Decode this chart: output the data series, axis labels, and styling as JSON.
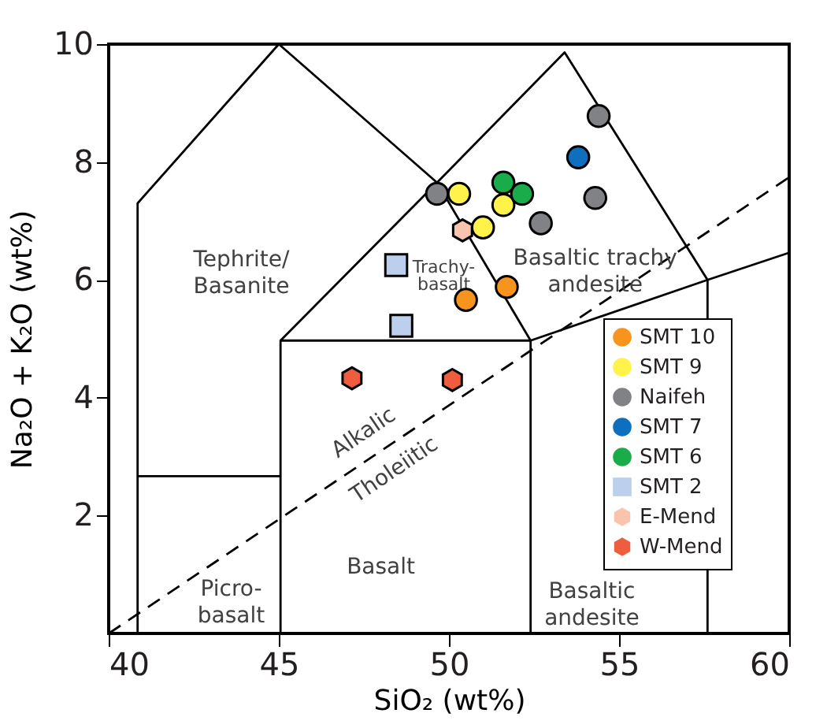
{
  "chart_data": {
    "type": "scatter",
    "xlabel": "SiO₂ (wt%)",
    "ylabel": "Na₂O + K₂O (wt%)",
    "xlim": [
      40,
      60
    ],
    "ylim": [
      0,
      10
    ],
    "xticks": [
      40,
      45,
      50,
      55,
      60
    ],
    "yticks": [
      2,
      4,
      6,
      8,
      10
    ],
    "grid": false,
    "legend": "right",
    "series": [
      {
        "name": "SMT 10",
        "color": "#f7941d",
        "marker": "circle",
        "x": [
          50.5,
          51.7
        ],
        "values": [
          5.66,
          5.88
        ]
      },
      {
        "name": "SMT 9",
        "color": "#fff24a",
        "marker": "circle",
        "x": [
          50.3,
          51.0,
          51.6
        ],
        "values": [
          7.46,
          6.89,
          7.27
        ]
      },
      {
        "name": "Naifeh",
        "color": "#808285",
        "marker": "circle",
        "x": [
          49.65,
          52.7,
          54.4,
          54.3
        ],
        "values": [
          7.46,
          6.96,
          8.78,
          7.39
        ]
      },
      {
        "name": "SMT 7",
        "color": "#0f6fbf",
        "marker": "circle",
        "x": [
          53.8
        ],
        "values": [
          8.08
        ]
      },
      {
        "name": "SMT 6",
        "color": "#1aab4b",
        "marker": "circle",
        "x": [
          51.6,
          52.15
        ],
        "values": [
          7.65,
          7.46
        ]
      },
      {
        "name": "SMT 2",
        "color": "#bccfec",
        "marker": "square",
        "x": [
          48.45,
          48.6
        ],
        "values": [
          6.25,
          5.22
        ]
      },
      {
        "name": "E-Mend",
        "color": "#f9c4ad",
        "x": [
          50.4
        ],
        "values": [
          6.84
        ]
      },
      {
        "name": "W-Mend",
        "color": "#ef5d3f",
        "x": [
          47.15,
          50.1
        ],
        "values": [
          4.33,
          4.3
        ]
      },
      {
        "type": "line",
        "color": "#000000",
        "line_style": "solid",
        "x": [
          40.85,
          40.85,
          45.0,
          49.65,
          52.4
        ],
        "values": [
          0,
          7.3,
          10,
          7.65,
          4.97
        ]
      },
      {
        "type": "line",
        "color": "#000000",
        "line_style": "solid",
        "x": [
          40.85,
          45.05
        ],
        "values": [
          2.67,
          2.67
        ]
      },
      {
        "type": "line",
        "color": "#000000",
        "line_style": "solid",
        "x": [
          45.05,
          45.05,
          52.4,
          52.4
        ],
        "values": [
          0,
          4.97,
          4.97,
          0
        ]
      },
      {
        "type": "line",
        "color": "#000000",
        "line_style": "solid",
        "x": [
          45.05,
          49.65,
          53.4,
          57.6,
          57.6
        ],
        "values": [
          4.97,
          7.65,
          9.86,
          6.0,
          0
        ]
      },
      {
        "type": "line",
        "color": "#000000",
        "line_style": "solid",
        "x": [
          52.4,
          57.6,
          60
        ],
        "values": [
          4.97,
          6.0,
          6.46
        ]
      },
      {
        "type": "line",
        "color": "#000000",
        "line_style": "dashed",
        "x": [
          40,
          60
        ],
        "values": [
          0,
          7.74
        ]
      }
    ],
    "annotations": [
      "Tephrite/\nBasanite",
      "Trachy-\nbasalt",
      "Basaltic trachy\nandesite",
      "Alkalic",
      "Tholeiitic",
      "Basalt",
      "Picro-\nbasalt",
      "Basaltic\nandesite"
    ]
  }
}
